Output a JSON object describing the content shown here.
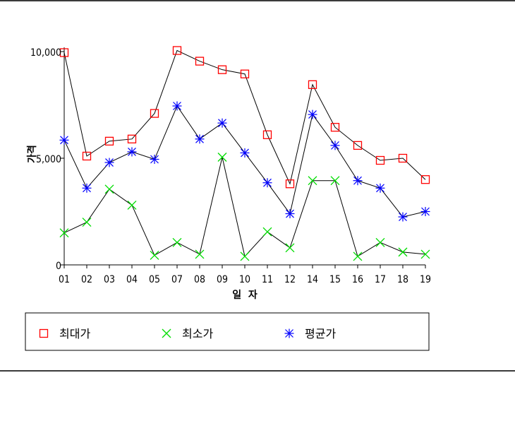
{
  "chart_data": {
    "type": "line",
    "xlabel": "일  자",
    "ylabel": "가격",
    "ylim": [
      0,
      10000
    ],
    "yticks": [
      0,
      5000,
      10000
    ],
    "ytick_labels": [
      "0",
      "5,000",
      "10,000"
    ],
    "categories": [
      "01",
      "02",
      "03",
      "04",
      "05",
      "07",
      "08",
      "09",
      "10",
      "11",
      "12",
      "14",
      "15",
      "16",
      "17",
      "18",
      "19"
    ],
    "series": [
      {
        "name": "최대가",
        "color": "#ff0000",
        "marker": "square",
        "values": [
          9950,
          5100,
          5800,
          5900,
          7100,
          10050,
          9550,
          9150,
          8950,
          6100,
          3800,
          8450,
          6450,
          5600,
          4900,
          5000,
          4000
        ]
      },
      {
        "name": "최소가",
        "color": "#00dd00",
        "marker": "x",
        "values": [
          1500,
          2000,
          3550,
          2800,
          450,
          1050,
          500,
          5050,
          400,
          1550,
          800,
          3950,
          3950,
          400,
          1050,
          600,
          500
        ]
      },
      {
        "name": "평균가",
        "color": "#0000ff",
        "marker": "asterisk",
        "values": [
          5850,
          3600,
          4800,
          5300,
          4950,
          7450,
          5900,
          6650,
          5250,
          3850,
          2400,
          7050,
          5600,
          3950,
          3600,
          2250,
          2500
        ]
      }
    ],
    "legend": "bottom",
    "grid": false
  }
}
